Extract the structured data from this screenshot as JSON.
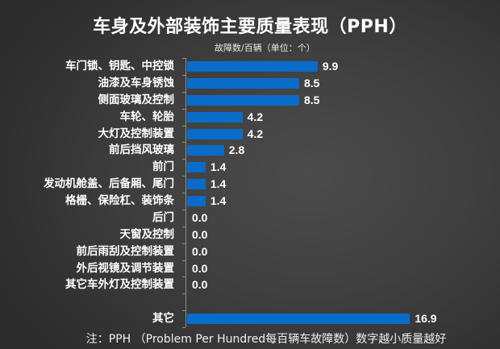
{
  "title": "车身及外部装饰主要质量表现（PPH）",
  "subtitle": "故障数/百辆（单位：个）",
  "note": "注：PPH （Problem Per Hundred每百辆车故障数）数字越小质量越好",
  "colors": {
    "bar": "#0a6cc9",
    "background": "#3f3f3f",
    "text": "#ffffff"
  },
  "chart_data": {
    "type": "bar",
    "orientation": "horizontal",
    "title": "车身及外部装饰主要质量表现（PPH）",
    "subtitle": "故障数/百辆（单位：个）",
    "xlabel": "",
    "ylabel": "",
    "xlim": [
      0,
      17
    ],
    "grid": false,
    "legend": null,
    "data_labels": true,
    "categories": [
      "车门锁、钥匙、中控锁",
      "油漆及车身锈蚀",
      "侧面玻璃及控制",
      "车轮、轮胎",
      "大灯及控制装置",
      "前后挡风玻璃",
      "前门",
      "发动机舱盖、后备厢、尾门",
      "格栅、保险杠、装饰条",
      "后门",
      "天窗及控制",
      "前后雨刮及控制装置",
      "外后视镜及调节装置",
      "其它车外灯及控制装置",
      "其它"
    ],
    "values": [
      9.9,
      8.5,
      8.5,
      4.2,
      4.2,
      2.8,
      1.4,
      1.4,
      1.4,
      0.0,
      0.0,
      0.0,
      0.0,
      0.0,
      16.9
    ],
    "labels": [
      "9.9",
      "8.5",
      "8.5",
      "4.2",
      "4.2",
      "2.8",
      "1.4",
      "1.4",
      "1.4",
      "0.0",
      "0.0",
      "0.0",
      "0.0",
      "0.0",
      "16.9"
    ],
    "annotation": "注：PPH （Problem Per Hundred每百辆车故障数）数字越小质量越好"
  }
}
